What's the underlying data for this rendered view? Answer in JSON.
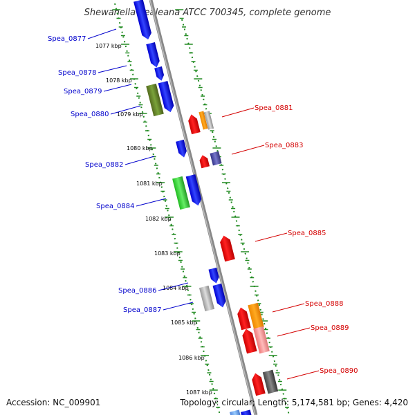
{
  "title": "Shewanella pealeana ATCC 700345, complete genome",
  "footer": {
    "accession": "Accession: NC_009901",
    "summary": "Topology: circular; Length: 5,174,581 bp; Genes: 4,420"
  },
  "kbp_labels": [
    "1077 kbp",
    "1078 kbp",
    "1079 kbp",
    "1080 kbp",
    "1081 kbp",
    "1082 kbp",
    "1083 kbp",
    "1084 kbp",
    "1085 kbp",
    "1086 kbp",
    "1087 kbp"
  ],
  "forward_genes": [
    {
      "label": "Spea_0877",
      "color": "#0000ff"
    },
    {
      "label": "Spea_0878",
      "color": "#0000ff"
    },
    {
      "label": "Spea_0879",
      "color": "#0000ff"
    },
    {
      "label": "Spea_0880",
      "color": "#0000ff"
    },
    {
      "label": "Spea_0882",
      "color": "#0000ff"
    },
    {
      "label": "Spea_0884",
      "color": "#0000ff"
    },
    {
      "label": "Spea_0886",
      "color": "#0000ff"
    },
    {
      "label": "Spea_0887",
      "color": "#0000ff"
    }
  ],
  "reverse_genes": [
    {
      "label": "Spea_0881",
      "color": "#ff0000"
    },
    {
      "label": "Spea_0883",
      "color": "#ff0000"
    },
    {
      "label": "Spea_0885",
      "color": "#ff0000"
    },
    {
      "label": "Spea_0888",
      "color": "#ff0000"
    },
    {
      "label": "Spea_0889",
      "color": "#ff0000"
    },
    {
      "label": "Spea_0890",
      "color": "#ff0000"
    }
  ],
  "colors": {
    "forward_label": "#0000cc",
    "reverse_label": "#d40000",
    "backbone": "#888888",
    "ruler": "#228b22",
    "other_gene_green": "#33cc33",
    "other_gene_olive": "#6b8e23",
    "other_gene_orange": "#ff9900",
    "other_gene_gray": "#bbbbbb",
    "other_gene_slate": "#5555aa",
    "other_gene_pink": "#ff9999"
  }
}
